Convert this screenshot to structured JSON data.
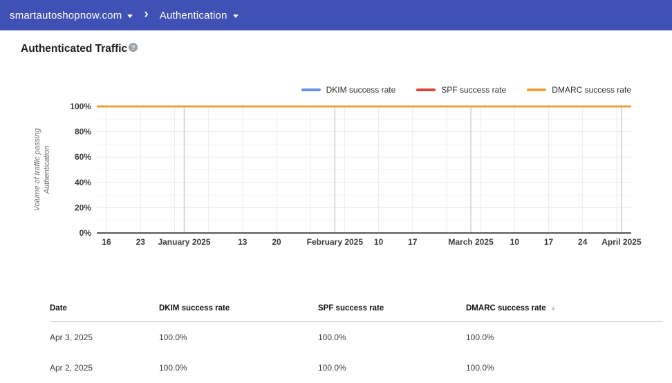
{
  "topbar": {
    "domain": "smartautoshopnow.com",
    "chevron": "›",
    "section": "Authentication",
    "bg_color": "#3f51b5"
  },
  "page": {
    "title": "Authenticated Traffic",
    "help_glyph": "?"
  },
  "chart_data": {
    "type": "line",
    "title": "Authenticated Traffic",
    "ylabel": "Volume of traffic passing Authentication",
    "ylabel_lines": [
      "Volume of traffic passing",
      "Authentication"
    ],
    "ylim": [
      0,
      100
    ],
    "y_major_ticks": [
      0,
      20,
      40,
      60,
      80,
      100
    ],
    "y_minor_step": 10,
    "y_tick_suffix": "%",
    "grid": true,
    "legend_position": "top-right",
    "x_domain_days": 110,
    "week_ticks": [
      {
        "day": 2,
        "label": "16"
      },
      {
        "day": 9,
        "label": "23"
      },
      {
        "day": 16,
        "label": ""
      },
      {
        "day": 23,
        "label": ""
      },
      {
        "day": 30,
        "label": "13"
      },
      {
        "day": 37,
        "label": "20"
      },
      {
        "day": 44,
        "label": ""
      },
      {
        "day": 51,
        "label": ""
      },
      {
        "day": 58,
        "label": "10"
      },
      {
        "day": 65,
        "label": "17"
      },
      {
        "day": 72,
        "label": ""
      },
      {
        "day": 79,
        "label": ""
      },
      {
        "day": 86,
        "label": "10"
      },
      {
        "day": 93,
        "label": "17"
      },
      {
        "day": 100,
        "label": "24"
      },
      {
        "day": 107,
        "label": ""
      }
    ],
    "month_ticks": [
      {
        "day": 18,
        "label": "January 2025"
      },
      {
        "day": 49,
        "label": "February 2025"
      },
      {
        "day": 77,
        "label": "March 2025"
      },
      {
        "day": 108,
        "label": "April 2025"
      }
    ],
    "series": [
      {
        "name": "DKIM success rate",
        "color": "#6490eb",
        "value": 100
      },
      {
        "name": "SPF success rate",
        "color": "#d6463c",
        "value": 100
      },
      {
        "name": "DMARC success rate",
        "color": "#eca23a",
        "value": 100
      }
    ]
  },
  "table": {
    "columns": [
      "Date",
      "DKIM success rate",
      "SPF success rate",
      "DMARC success rate"
    ],
    "sort_indicator": {
      "column": "DMARC success rate",
      "direction": "ascending",
      "glyph": "▲"
    },
    "rows": [
      {
        "date": "Apr 3, 2025",
        "dkim": "100.0%",
        "spf": "100.0%",
        "dmarc": "100.0%"
      },
      {
        "date": "Apr 2, 2025",
        "dkim": "100.0%",
        "spf": "100.0%",
        "dmarc": "100.0%"
      }
    ]
  }
}
